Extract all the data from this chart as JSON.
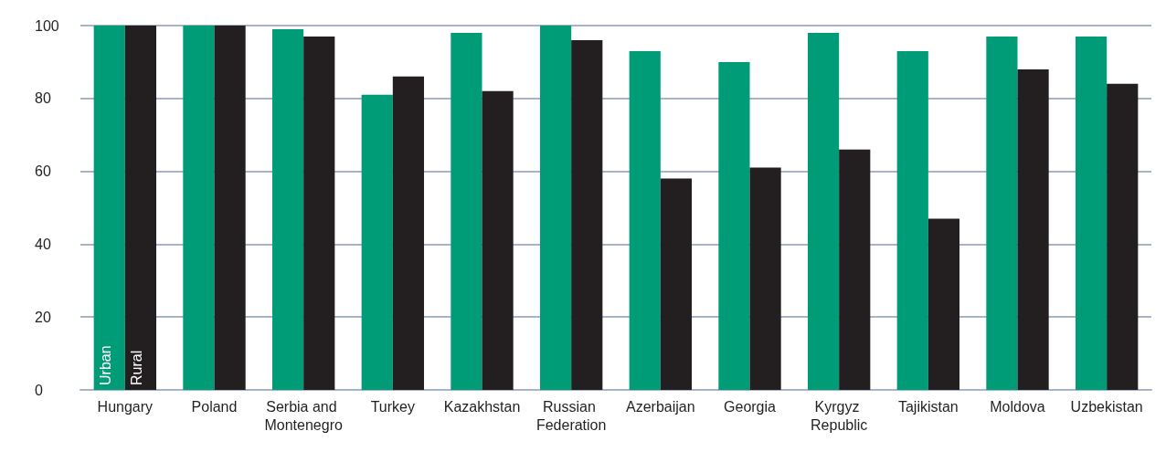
{
  "chart_data": {
    "type": "bar",
    "categories": [
      "Hungary",
      "Poland",
      "Serbia and Montenegro",
      "Turkey",
      "Kazakhstan",
      "Russian Federation",
      "Azerbaijan",
      "Georgia",
      "Kyrgyz Republic",
      "Tajikistan",
      "Moldova",
      "Uzbekistan"
    ],
    "series": [
      {
        "name": "Urban",
        "color": "#009b77",
        "values": [
          100,
          100,
          99,
          81,
          98,
          100,
          93,
          90,
          98,
          93,
          97,
          97
        ]
      },
      {
        "name": "Rural",
        "color": "#231f20",
        "values": [
          100,
          100,
          97,
          86,
          82,
          96,
          58,
          61,
          66,
          47,
          88,
          84
        ]
      }
    ],
    "ylim": [
      0,
      100
    ],
    "yticks": [
      0,
      20,
      40,
      60,
      80,
      100
    ],
    "grid": "y",
    "legend": false
  }
}
